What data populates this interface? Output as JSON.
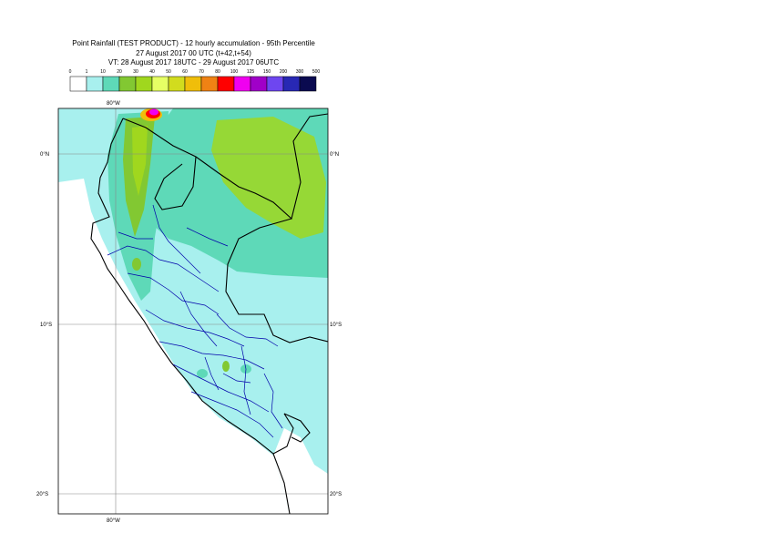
{
  "header": {
    "line1": "Point Rainfall (TEST PRODUCT) - 12 hourly accumulation - 95th Percentile",
    "line2": "27 August 2017 00 UTC (t+42,t+54)",
    "line3": "VT: 28 August 2017 18UTC - 29 August 2017 06UTC"
  },
  "legend": {
    "ticks": [
      "0",
      "1",
      "10",
      "20",
      "30",
      "40",
      "50",
      "60",
      "70",
      "80",
      "100",
      "125",
      "150",
      "200",
      "300",
      "500"
    ],
    "colors": [
      "#ffffff",
      "#a8f0ee",
      "#5ed9b8",
      "#82c832",
      "#a0d71e",
      "#e6ff64",
      "#d2dc1e",
      "#f0be0a",
      "#f08214",
      "#ff0000",
      "#f000f0",
      "#a000c8",
      "#6e46f0",
      "#2828b4",
      "#0a0a50"
    ]
  },
  "map": {
    "lat_labels": [
      "0°N",
      "10°S",
      "20°S"
    ],
    "lon_labels": [
      "80°W"
    ],
    "colors": {
      "sea": "#a8f0ee",
      "light": "#5ed9b8",
      "medium": "#a0d71e",
      "green": "#82c832",
      "land_dry": "#ffffff",
      "national_border": "#000000",
      "regional_border": "#0000aa",
      "grid": "#888888"
    }
  }
}
